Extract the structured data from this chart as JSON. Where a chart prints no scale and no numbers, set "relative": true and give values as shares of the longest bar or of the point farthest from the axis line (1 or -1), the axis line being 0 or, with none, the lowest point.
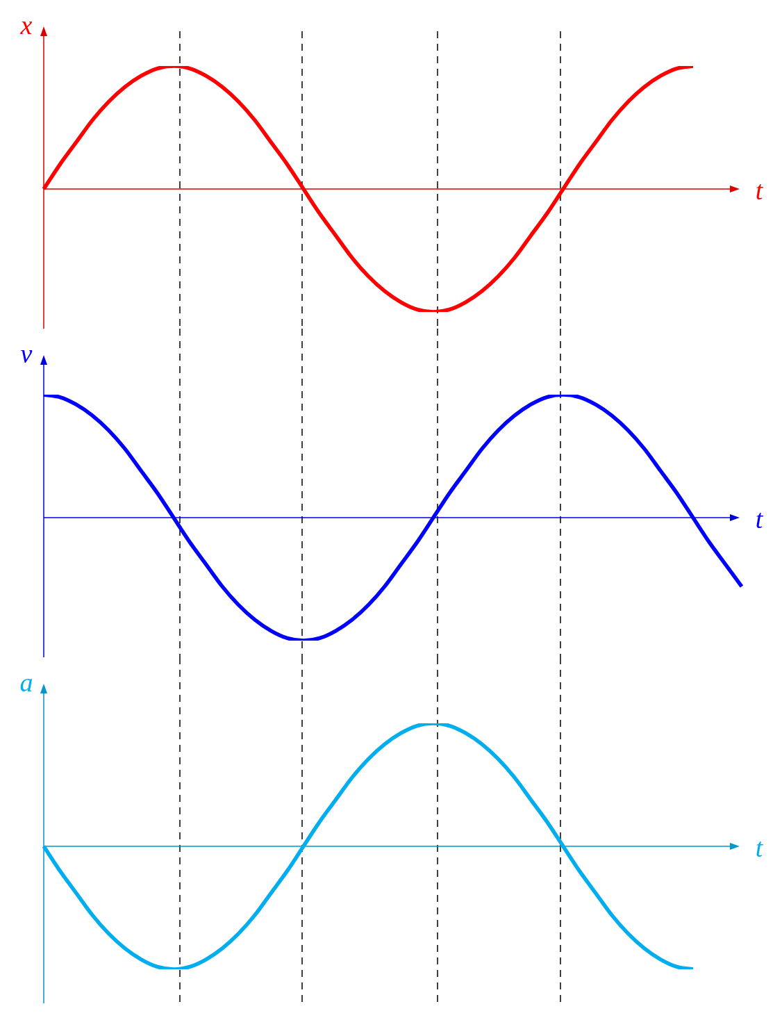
{
  "chart_data": [
    {
      "type": "line",
      "xlabel": "t",
      "ylabel": "x",
      "relative": true,
      "ref_lines": [
        {
          "axis": "y",
          "value": 0,
          "color": "#db0000"
        }
      ],
      "legend": false,
      "tick_labels": false,
      "categories": [
        null,
        null,
        null,
        null,
        null,
        null,
        null,
        null,
        null,
        null,
        null,
        null,
        null,
        null,
        null,
        null,
        null,
        null,
        null,
        null,
        null,
        null,
        null,
        null,
        null,
        null,
        null,
        null,
        null,
        null,
        null,
        null,
        null,
        null,
        null,
        null,
        null,
        null,
        null,
        null,
        null,
        null,
        null,
        null
      ],
      "series": [
        {
          "color": "#ff0000",
          "values": [
            0,
            0.2,
            0.38,
            0.56,
            0.71,
            0.83,
            0.92,
            0.98,
            1,
            0.98,
            0.92,
            0.83,
            0.71,
            0.56,
            0.38,
            0.2,
            0,
            -0.2,
            -0.38,
            -0.56,
            -0.71,
            -0.83,
            -0.92,
            -0.98,
            -1,
            -0.98,
            -0.92,
            -0.83,
            -0.71,
            -0.56,
            -0.38,
            -0.2,
            0,
            0.2,
            0.38,
            0.56,
            0.71,
            0.83,
            0.92,
            0.98,
            1,
            null,
            null,
            null
          ]
        }
      ]
    },
    {
      "type": "line",
      "xlabel": "t",
      "ylabel": "v",
      "relative": true,
      "ref_lines": [
        {
          "axis": "y",
          "value": 0,
          "color": "#0000db"
        }
      ],
      "legend": false,
      "tick_labels": false,
      "categories": [
        null,
        null,
        null,
        null,
        null,
        null,
        null,
        null,
        null,
        null,
        null,
        null,
        null,
        null,
        null,
        null,
        null,
        null,
        null,
        null,
        null,
        null,
        null,
        null,
        null,
        null,
        null,
        null,
        null,
        null,
        null,
        null,
        null,
        null,
        null,
        null,
        null,
        null,
        null,
        null,
        null,
        null,
        null,
        null
      ],
      "series": [
        {
          "color": "#0000ff",
          "values": [
            1,
            0.98,
            0.92,
            0.83,
            0.71,
            0.56,
            0.38,
            0.2,
            0,
            -0.2,
            -0.38,
            -0.56,
            -0.71,
            -0.83,
            -0.92,
            -0.98,
            -1,
            -0.98,
            -0.92,
            -0.83,
            -0.71,
            -0.56,
            -0.38,
            -0.2,
            0,
            0.2,
            0.38,
            0.56,
            0.71,
            0.83,
            0.92,
            0.98,
            1,
            0.98,
            0.92,
            0.83,
            0.71,
            0.56,
            0.38,
            0.2,
            0,
            -0.2,
            -0.38,
            -0.56
          ]
        }
      ]
    },
    {
      "type": "line",
      "xlabel": "t",
      "ylabel": "a",
      "relative": true,
      "ref_lines": [
        {
          "axis": "y",
          "value": 0,
          "color": "#0096ce"
        }
      ],
      "legend": false,
      "tick_labels": false,
      "categories": [
        null,
        null,
        null,
        null,
        null,
        null,
        null,
        null,
        null,
        null,
        null,
        null,
        null,
        null,
        null,
        null,
        null,
        null,
        null,
        null,
        null,
        null,
        null,
        null,
        null,
        null,
        null,
        null,
        null,
        null,
        null,
        null,
        null,
        null,
        null,
        null,
        null,
        null,
        null,
        null,
        null,
        null,
        null,
        null
      ],
      "series": [
        {
          "color": "#00aeef",
          "values": [
            0,
            -0.2,
            -0.38,
            -0.56,
            -0.71,
            -0.83,
            -0.92,
            -0.98,
            -1,
            -0.98,
            -0.92,
            -0.83,
            -0.71,
            -0.56,
            -0.38,
            -0.2,
            0,
            0.2,
            0.38,
            0.56,
            0.71,
            0.83,
            0.92,
            0.98,
            1,
            0.98,
            0.92,
            0.83,
            0.71,
            0.56,
            0.38,
            0.2,
            0,
            -0.2,
            -0.38,
            -0.56,
            -0.71,
            -0.83,
            -0.92,
            -0.98,
            -1,
            null,
            null,
            null
          ]
        }
      ]
    }
  ]
}
